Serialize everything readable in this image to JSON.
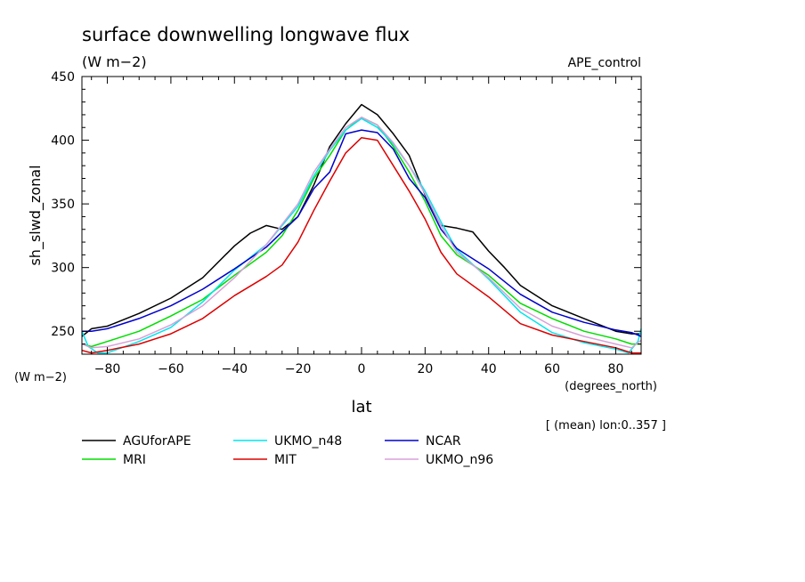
{
  "chart_data": {
    "type": "line",
    "title": "surface downwelling longwave flux",
    "subtitle": "(W m−2)",
    "experiment": "APE_control",
    "ylabel": "sh_slwd_zonal",
    "yunits": "(W m−2)",
    "xlabel": "lat",
    "xunits": "(degrees_north)",
    "footnote": "[ (mean) lon:0..357 ]",
    "xlim": [
      -88,
      88
    ],
    "ylim": [
      232,
      450
    ],
    "xticks": [
      -80,
      -60,
      -40,
      -20,
      0,
      20,
      40,
      60,
      80
    ],
    "xtick_labels": [
      "−80",
      "−60",
      "−40",
      "−20",
      "0",
      "20",
      "40",
      "60",
      "80"
    ],
    "yticks": [
      250,
      300,
      350,
      400,
      450
    ],
    "ytick_labels": [
      "250",
      "300",
      "350",
      "400",
      "450"
    ],
    "grid": false,
    "legend_placement": "bottom",
    "series": [
      {
        "name": "AGUforAPE",
        "color": "#000000",
        "x": [
          -88,
          -85,
          -80,
          -70,
          -60,
          -50,
          -40,
          -35,
          -30,
          -25,
          -20,
          -15,
          -10,
          -5,
          0,
          5,
          10,
          15,
          20,
          25,
          30,
          35,
          40,
          45,
          50,
          60,
          70,
          80,
          85,
          88
        ],
        "y": [
          246,
          252,
          254,
          264,
          276,
          292,
          317,
          327,
          333,
          330,
          340,
          365,
          395,
          413,
          428,
          420,
          405,
          388,
          357,
          333,
          331,
          328,
          313,
          300,
          286,
          270,
          260,
          250,
          248,
          248
        ]
      },
      {
        "name": "MRI",
        "color": "#00dd00",
        "x": [
          -88,
          -85,
          -80,
          -70,
          -60,
          -50,
          -40,
          -30,
          -25,
          -20,
          -15,
          -10,
          -5,
          0,
          5,
          10,
          15,
          20,
          25,
          30,
          40,
          50,
          60,
          70,
          80,
          85,
          88
        ],
        "y": [
          240,
          238,
          242,
          250,
          262,
          275,
          294,
          312,
          325,
          345,
          370,
          388,
          408,
          418,
          412,
          395,
          375,
          352,
          325,
          310,
          294,
          272,
          260,
          250,
          244,
          240,
          240
        ]
      },
      {
        "name": "UKMO_n48",
        "color": "#00e5ee",
        "x": [
          -88,
          -86,
          -83,
          -80,
          -70,
          -60,
          -50,
          -40,
          -30,
          -20,
          -15,
          -10,
          -5,
          0,
          5,
          10,
          15,
          20,
          25,
          30,
          40,
          50,
          60,
          70,
          80,
          84,
          87,
          88
        ],
        "y": [
          250,
          238,
          233,
          233,
          242,
          253,
          273,
          298,
          318,
          348,
          372,
          392,
          408,
          417,
          410,
          397,
          380,
          360,
          336,
          314,
          291,
          265,
          249,
          241,
          236,
          233,
          242,
          252
        ]
      },
      {
        "name": "MIT",
        "color": "#dd0000",
        "x": [
          -88,
          -85,
          -80,
          -70,
          -60,
          -50,
          -40,
          -30,
          -25,
          -20,
          -15,
          -10,
          -5,
          0,
          5,
          10,
          15,
          20,
          25,
          30,
          40,
          50,
          60,
          70,
          80,
          85,
          88
        ],
        "y": [
          235,
          233,
          235,
          240,
          248,
          260,
          278,
          293,
          302,
          320,
          345,
          368,
          390,
          402,
          400,
          380,
          360,
          338,
          312,
          295,
          277,
          256,
          247,
          242,
          237,
          233,
          233
        ]
      },
      {
        "name": "NCAR",
        "color": "#0000cc",
        "x": [
          -88,
          -85,
          -80,
          -70,
          -60,
          -50,
          -40,
          -30,
          -25,
          -20,
          -15,
          -10,
          -5,
          0,
          5,
          10,
          15,
          20,
          25,
          30,
          40,
          50,
          60,
          70,
          80,
          85,
          88
        ],
        "y": [
          250,
          250,
          252,
          260,
          270,
          283,
          299,
          316,
          328,
          340,
          362,
          375,
          405,
          408,
          406,
          393,
          370,
          355,
          330,
          315,
          299,
          279,
          265,
          257,
          251,
          249,
          246
        ]
      },
      {
        "name": "UKMO_n96",
        "color": "#d8a0d8",
        "x": [
          -88,
          -85,
          -80,
          -70,
          -60,
          -50,
          -40,
          -30,
          -20,
          -15,
          -10,
          -5,
          0,
          5,
          10,
          15,
          20,
          25,
          30,
          40,
          50,
          60,
          70,
          80,
          85,
          88
        ],
        "y": [
          240,
          237,
          238,
          244,
          255,
          270,
          292,
          318,
          350,
          375,
          393,
          410,
          418,
          412,
          398,
          380,
          358,
          333,
          312,
          292,
          268,
          254,
          246,
          240,
          237,
          243
        ]
      }
    ]
  }
}
